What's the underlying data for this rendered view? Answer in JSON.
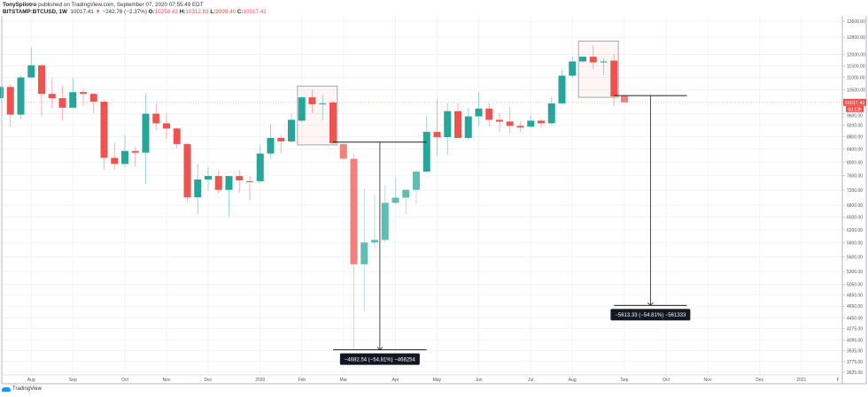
{
  "header": {
    "author": "TonySpilotro",
    "published": "published on TradingView.com, September 07, 2020 07:55:49 EDT",
    "symbol": "BITSTAMP:BTCUSD, 1W",
    "last": "10017.41",
    "change_arrow": "▼",
    "change": "−242.76 (−2.37%)",
    "o_label": "O:",
    "o": "10258.43",
    "h_label": "H:",
    "h": "10312.83",
    "l_label": "L:",
    "l": "9999.40",
    "c_label": "C:",
    "c": "10017.41"
  },
  "price_label": {
    "value": "10017.41",
    "countdown": "6d 13h"
  },
  "logo": {
    "text": "TradingView"
  },
  "colors": {
    "up": "#26a69a",
    "down": "#ef5350",
    "up_faded": "#5fbdb2",
    "down_faded": "#f47f7d",
    "grid": "#eef1f5",
    "annotation": "#222222"
  },
  "chart_data": {
    "type": "candlestick",
    "title": "",
    "interval": "1W",
    "yscale": "log",
    "ylim": [
      3625,
      13600
    ],
    "grid": true,
    "y_ticks": [
      "13600.00",
      "12800.00",
      "12000.00",
      "11500.00",
      "11000.00",
      "10500.00",
      "9600.00",
      "9200.00",
      "8800.00",
      "8400.00",
      "8000.00",
      "7600.00",
      "7200.00",
      "6800.00",
      "6500.00",
      "6200.00",
      "5900.00",
      "5600.00",
      "5300.00",
      "5050.00",
      "4850.00",
      "4650.00",
      "4450.00",
      "4275.00",
      "4095.00",
      "3935.00",
      "3775.00",
      "3625.00"
    ],
    "x_ticks": [
      {
        "label": "Aug",
        "t": "2019-08-05"
      },
      {
        "label": "Sep",
        "t": "2019-09-02"
      },
      {
        "label": "Oct",
        "t": "2019-10-07"
      },
      {
        "label": "Nov",
        "t": "2019-11-04"
      },
      {
        "label": "Dec",
        "t": "2019-12-02"
      },
      {
        "label": "2020",
        "t": "2020-01-06"
      },
      {
        "label": "Feb",
        "t": "2020-02-03"
      },
      {
        "label": "Mar",
        "t": "2020-03-02"
      },
      {
        "label": "Apr",
        "t": "2020-04-06"
      },
      {
        "label": "May",
        "t": "2020-05-04"
      },
      {
        "label": "Jun",
        "t": "2020-06-01"
      },
      {
        "label": "Jul",
        "t": "2020-07-06"
      },
      {
        "label": "Aug",
        "t": "2020-08-03"
      },
      {
        "label": "Sep",
        "t": "2020-09-07"
      },
      {
        "label": "Oct",
        "t": "2020-10-05"
      },
      {
        "label": "Nov",
        "t": "2020-11-02"
      },
      {
        "label": "Dec",
        "t": "2020-12-07"
      },
      {
        "label": "2021",
        "t": "2021-01-04"
      },
      {
        "label": "F",
        "t": "2021-02-01"
      }
    ],
    "candles": [
      {
        "t": "2019-07-15",
        "o": 10180,
        "h": 10650,
        "l": 10150,
        "c": 10618
      },
      {
        "t": "2019-07-22",
        "o": 10618,
        "h": 10722,
        "l": 9141,
        "c": 9567
      },
      {
        "t": "2019-07-29",
        "o": 9567,
        "h": 11077,
        "l": 9412,
        "c": 11005
      },
      {
        "t": "2019-08-05",
        "o": 11005,
        "h": 12294,
        "l": 10950,
        "c": 11518
      },
      {
        "t": "2019-08-12",
        "o": 11518,
        "h": 11556,
        "l": 9504,
        "c": 10344
      },
      {
        "t": "2019-08-19",
        "o": 10344,
        "h": 10969,
        "l": 9787,
        "c": 10177
      },
      {
        "t": "2019-08-26",
        "o": 10177,
        "h": 10653,
        "l": 9351,
        "c": 9819
      },
      {
        "t": "2019-09-02",
        "o": 9819,
        "h": 10969,
        "l": 9800,
        "c": 10412
      },
      {
        "t": "2019-09-09",
        "o": 10412,
        "h": 10549,
        "l": 9883,
        "c": 10344
      },
      {
        "t": "2019-09-16",
        "o": 10344,
        "h": 10378,
        "l": 9629,
        "c": 10046
      },
      {
        "t": "2019-09-23",
        "o": 10046,
        "h": 10111,
        "l": 7792,
        "c": 8129
      },
      {
        "t": "2019-09-30",
        "o": 8129,
        "h": 8591,
        "l": 7792,
        "c": 7945
      },
      {
        "t": "2019-10-07",
        "o": 7945,
        "h": 8848,
        "l": 7843,
        "c": 8343
      },
      {
        "t": "2019-10-14",
        "o": 8343,
        "h": 8480,
        "l": 7868,
        "c": 8289
      },
      {
        "t": "2019-10-21",
        "o": 8289,
        "h": 10344,
        "l": 7372,
        "c": 9598
      },
      {
        "t": "2019-10-28",
        "o": 9598,
        "h": 9980,
        "l": 9023,
        "c": 9260
      },
      {
        "t": "2019-11-04",
        "o": 9260,
        "h": 9629,
        "l": 8733,
        "c": 9081
      },
      {
        "t": "2019-11-11",
        "o": 9081,
        "h": 9111,
        "l": 8425,
        "c": 8563
      },
      {
        "t": "2019-11-18",
        "o": 8563,
        "h": 8600,
        "l": 6884,
        "c": 7006
      },
      {
        "t": "2019-11-25",
        "o": 7006,
        "h": 7945,
        "l": 6578,
        "c": 7493
      },
      {
        "t": "2019-12-02",
        "o": 7493,
        "h": 7843,
        "l": 7182,
        "c": 7591
      },
      {
        "t": "2019-12-09",
        "o": 7591,
        "h": 7741,
        "l": 7112,
        "c": 7206
      },
      {
        "t": "2019-12-16",
        "o": 7206,
        "h": 7591,
        "l": 6514,
        "c": 7591
      },
      {
        "t": "2019-12-23",
        "o": 7591,
        "h": 7766,
        "l": 7136,
        "c": 7468
      },
      {
        "t": "2019-12-30",
        "o": 7444,
        "h": 7591,
        "l": 6929,
        "c": 7420
      },
      {
        "t": "2020-01-06",
        "o": 7444,
        "h": 8535,
        "l": 7400,
        "c": 8262
      },
      {
        "t": "2020-01-13",
        "o": 8262,
        "h": 9230,
        "l": 8102,
        "c": 8762
      },
      {
        "t": "2020-01-20",
        "o": 8762,
        "h": 8848,
        "l": 8262,
        "c": 8648
      },
      {
        "t": "2020-01-27",
        "o": 8648,
        "h": 9598,
        "l": 8600,
        "c": 9382
      },
      {
        "t": "2020-02-03",
        "o": 9351,
        "h": 10244,
        "l": 9300,
        "c": 10210
      },
      {
        "t": "2020-02-10",
        "o": 10210,
        "h": 10515,
        "l": 9629,
        "c": 9948
      },
      {
        "t": "2020-02-17",
        "o": 9948,
        "h": 10311,
        "l": 9351,
        "c": 9980
      },
      {
        "t": "2020-02-24",
        "o": 10013,
        "h": 10078,
        "l": 8563,
        "c": 8591
      },
      {
        "t": "2020-03-02",
        "o": 8563,
        "h": 8600,
        "l": 8102,
        "c": 8102,
        "faded": true
      },
      {
        "t": "2020-03-09",
        "o": 8102,
        "h": 8262,
        "l": 3957,
        "c": 5445,
        "faded": true
      },
      {
        "t": "2020-03-16",
        "o": 5445,
        "h": 7229,
        "l": 4552,
        "c": 5909,
        "faded": true
      },
      {
        "t": "2020-03-23",
        "o": 5909,
        "h": 7066,
        "l": 5778,
        "c": 5967,
        "faded": true
      },
      {
        "t": "2020-03-30",
        "o": 5967,
        "h": 7324,
        "l": 5900,
        "c": 6862,
        "faded": true
      },
      {
        "t": "2020-04-06",
        "o": 6862,
        "h": 7541,
        "l": 6840,
        "c": 6997,
        "faded": true
      },
      {
        "t": "2020-04-13",
        "o": 6997,
        "h": 7206,
        "l": 6578,
        "c": 7206,
        "faded": true
      },
      {
        "t": "2020-04-20",
        "o": 7206,
        "h": 7766,
        "l": 6840,
        "c": 7716,
        "faded": true
      },
      {
        "t": "2020-04-27",
        "o": 7716,
        "h": 9536,
        "l": 7716,
        "c": 8964
      },
      {
        "t": "2020-05-04",
        "o": 8964,
        "h": 10111,
        "l": 8182,
        "c": 8790
      },
      {
        "t": "2020-05-11",
        "o": 8790,
        "h": 9980,
        "l": 8235,
        "c": 9692
      },
      {
        "t": "2020-05-18",
        "o": 9692,
        "h": 9980,
        "l": 8762,
        "c": 8762
      },
      {
        "t": "2020-05-25",
        "o": 8762,
        "h": 9819,
        "l": 8677,
        "c": 9504
      },
      {
        "t": "2020-06-01",
        "o": 9504,
        "h": 10412,
        "l": 9170,
        "c": 9787
      },
      {
        "t": "2020-06-08",
        "o": 9787,
        "h": 9980,
        "l": 9141,
        "c": 9382
      },
      {
        "t": "2020-06-15",
        "o": 9382,
        "h": 9629,
        "l": 8964,
        "c": 9321
      },
      {
        "t": "2020-06-22",
        "o": 9321,
        "h": 9851,
        "l": 8905,
        "c": 9170
      },
      {
        "t": "2020-06-29",
        "o": 9170,
        "h": 9321,
        "l": 8964,
        "c": 9111
      },
      {
        "t": "2020-07-06",
        "o": 9141,
        "h": 9536,
        "l": 9100,
        "c": 9351
      },
      {
        "t": "2020-07-13",
        "o": 9351,
        "h": 9400,
        "l": 9081,
        "c": 9260
      },
      {
        "t": "2020-07-20",
        "o": 9260,
        "h": 10210,
        "l": 9200,
        "c": 9980
      },
      {
        "t": "2020-07-27",
        "o": 9980,
        "h": 11332,
        "l": 9950,
        "c": 11077
      },
      {
        "t": "2020-08-03",
        "o": 11077,
        "h": 11899,
        "l": 10969,
        "c": 11687
      },
      {
        "t": "2020-08-10",
        "o": 11687,
        "h": 11899,
        "l": 11650,
        "c": 11899
      },
      {
        "t": "2020-08-17",
        "o": 11899,
        "h": 12415,
        "l": 11369,
        "c": 11649
      },
      {
        "t": "2020-08-24",
        "o": 11649,
        "h": 11822,
        "l": 11113,
        "c": 11687
      },
      {
        "t": "2020-08-31",
        "o": 11725,
        "h": 12016,
        "l": 9883,
        "c": 10244
      },
      {
        "t": "2020-09-07",
        "o": 10258.43,
        "h": 10312.83,
        "l": 9999.4,
        "c": 10017.41,
        "faded": true
      }
    ],
    "last_price": 10017.41,
    "annotations": {
      "boxes": [
        {
          "from": "2020-02-03",
          "to": "2020-02-24",
          "top": 10653,
          "bottom": 8535
        },
        {
          "from": "2020-08-10",
          "to": "2020-08-31",
          "top": 12618,
          "bottom": 10210
        }
      ],
      "measures": [
        {
          "from": "2020-02-24",
          "to": "2020-04-27",
          "top": 8626,
          "bottom": 3944,
          "label": "−4682.54 (−54.81%) −468254"
        },
        {
          "from": "2020-08-31",
          "to": "2020-10-19",
          "top": 10277,
          "bottom": 4664,
          "label": "−5613.33 (−54.81%) −561333"
        }
      ]
    }
  }
}
